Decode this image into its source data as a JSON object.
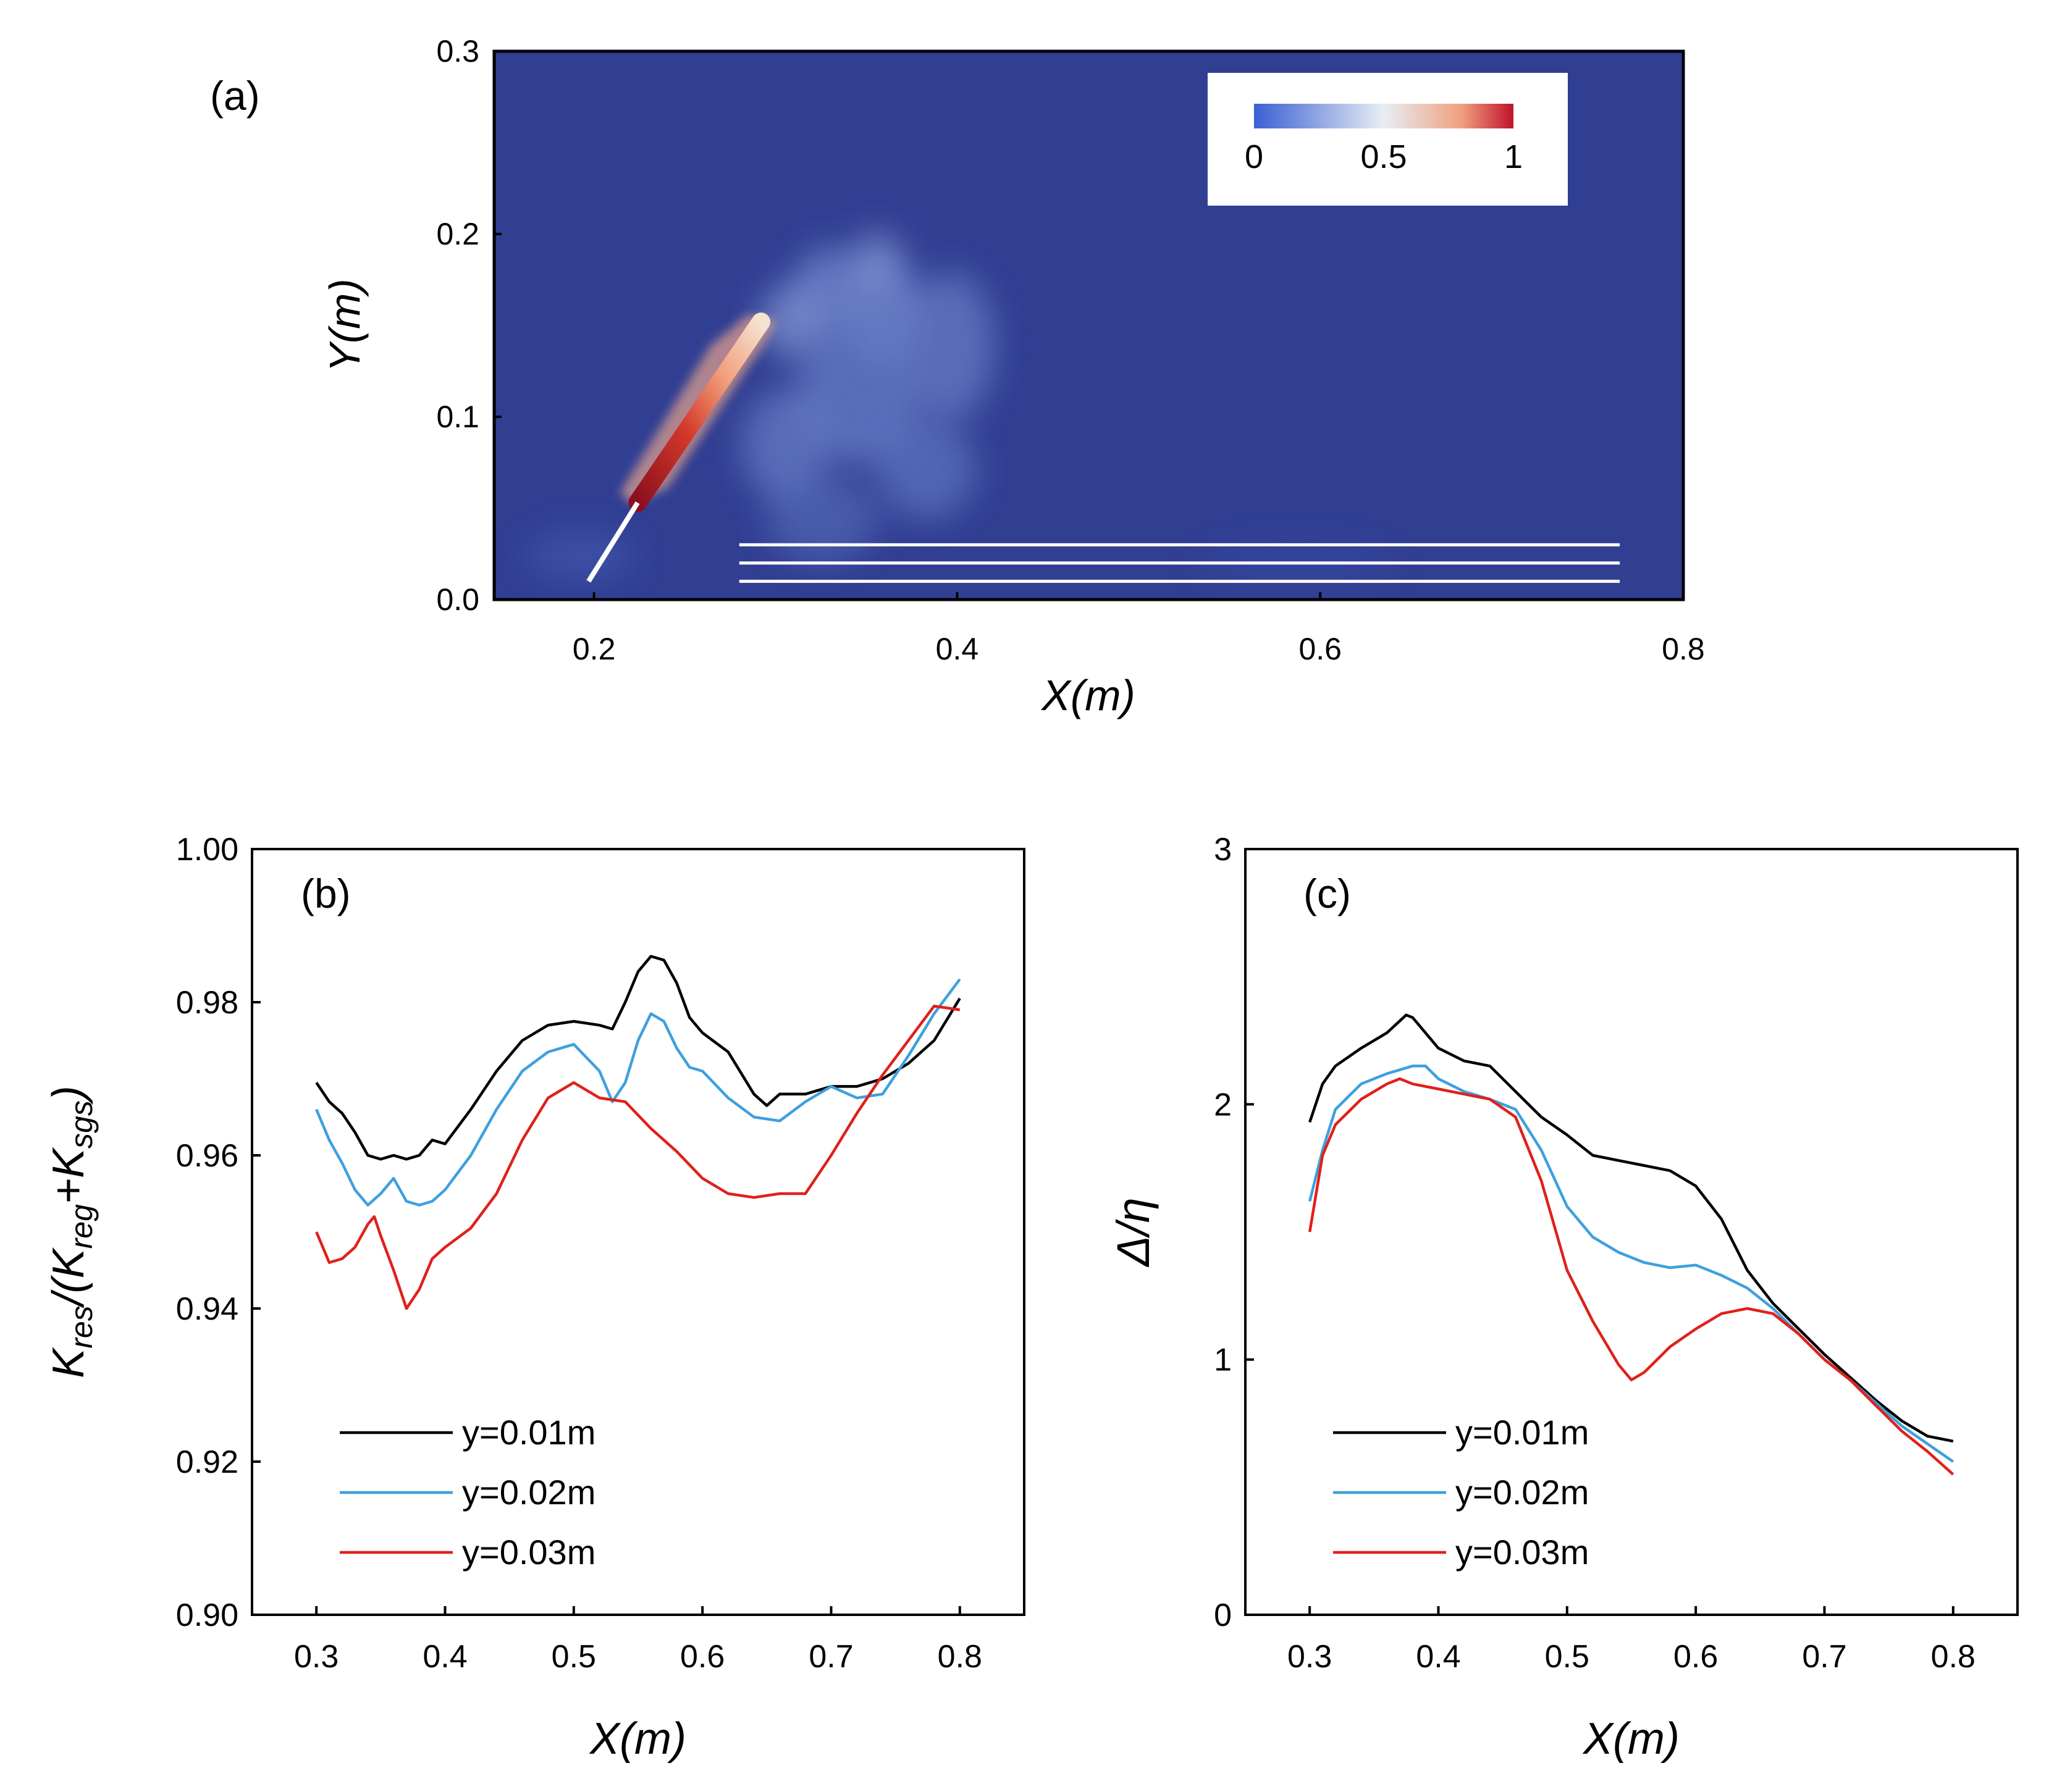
{
  "figure": {
    "panel_a_label": "(a)",
    "panel_b_label": "(b)",
    "panel_c_label": "(c)"
  },
  "chart_data": [
    {
      "id": "a",
      "type": "heatmap",
      "title": "",
      "xlabel": "X(m)",
      "ylabel": "Y(m)",
      "xlim": [
        0.145,
        0.8
      ],
      "ylim": [
        0,
        0.3
      ],
      "xticks": [
        "0.2",
        "0.4",
        "0.6",
        "0.8"
      ],
      "xtick_values": [
        0.2,
        0.4,
        0.6,
        0.8
      ],
      "yticks": [
        "0.0",
        "0.1",
        "0.2",
        "0.3"
      ],
      "ytick_values": [
        0.0,
        0.1,
        0.2,
        0.3
      ],
      "colorbar": {
        "min": 0,
        "max": 1,
        "ticks": [
          "0",
          "0.5",
          "1"
        ],
        "tick_values": [
          0,
          0.5,
          1
        ]
      },
      "colors": {
        "background": "#313f93",
        "low": "#3a5fd3",
        "mid": "#e8eef5",
        "high": "#c0122a"
      },
      "jet": {
        "start": [
          0.197,
          0.01
        ],
        "end": [
          0.292,
          0.152
        ],
        "nozzle_end": [
          0.224,
          0.053
        ]
      },
      "sample_lines_y": [
        0.01,
        0.02,
        0.03
      ],
      "sample_lines_x": [
        0.28,
        0.765
      ]
    },
    {
      "id": "b",
      "type": "line",
      "xlabel": "X(m)",
      "ylabel": "K_res/(K_reg+K_sgs)",
      "ylabel_parts": {
        "k1": "K",
        "s1": "res",
        "mid1": "/(K",
        "s2": "reg",
        "mid2": "+K",
        "s3": "sgs",
        "end": ")"
      },
      "xlim": [
        0.25,
        0.85
      ],
      "ylim": [
        0.9,
        1.0
      ],
      "xticks": [
        "0.3",
        "0.4",
        "0.5",
        "0.6",
        "0.7",
        "0.8"
      ],
      "xtick_values": [
        0.3,
        0.4,
        0.5,
        0.6,
        0.7,
        0.8
      ],
      "yticks": [
        "0.90",
        "0.92",
        "0.94",
        "0.96",
        "0.98",
        "1.00"
      ],
      "ytick_values": [
        0.9,
        0.92,
        0.94,
        0.96,
        0.98,
        1.0
      ],
      "legend_position": "lower-left",
      "series": [
        {
          "name": "y=0.01m",
          "color": "#000000",
          "x": [
            0.3,
            0.31,
            0.32,
            0.33,
            0.34,
            0.35,
            0.36,
            0.37,
            0.38,
            0.39,
            0.4,
            0.42,
            0.44,
            0.46,
            0.48,
            0.5,
            0.52,
            0.53,
            0.54,
            0.55,
            0.56,
            0.57,
            0.58,
            0.59,
            0.6,
            0.62,
            0.64,
            0.65,
            0.66,
            0.68,
            0.7,
            0.72,
            0.74,
            0.76,
            0.78,
            0.8
          ],
          "y": [
            0.9695,
            0.967,
            0.9655,
            0.963,
            0.96,
            0.9595,
            0.96,
            0.9595,
            0.96,
            0.962,
            0.9615,
            0.966,
            0.971,
            0.975,
            0.977,
            0.9775,
            0.977,
            0.9765,
            0.98,
            0.984,
            0.986,
            0.9855,
            0.9825,
            0.978,
            0.976,
            0.9735,
            0.968,
            0.9665,
            0.968,
            0.968,
            0.969,
            0.969,
            0.97,
            0.972,
            0.975,
            0.9805
          ]
        },
        {
          "name": "y=0.02m",
          "color": "#3ea0dd",
          "x": [
            0.3,
            0.31,
            0.32,
            0.33,
            0.34,
            0.35,
            0.36,
            0.37,
            0.38,
            0.39,
            0.4,
            0.42,
            0.44,
            0.46,
            0.48,
            0.5,
            0.52,
            0.53,
            0.54,
            0.55,
            0.56,
            0.57,
            0.58,
            0.59,
            0.6,
            0.62,
            0.64,
            0.66,
            0.68,
            0.7,
            0.72,
            0.74,
            0.76,
            0.78,
            0.8
          ],
          "y": [
            0.966,
            0.962,
            0.959,
            0.9555,
            0.9535,
            0.955,
            0.957,
            0.954,
            0.9535,
            0.954,
            0.9555,
            0.96,
            0.966,
            0.971,
            0.9735,
            0.9745,
            0.971,
            0.967,
            0.9695,
            0.975,
            0.9785,
            0.9775,
            0.974,
            0.9715,
            0.971,
            0.9675,
            0.965,
            0.9645,
            0.967,
            0.969,
            0.9675,
            0.968,
            0.973,
            0.9785,
            0.983
          ]
        },
        {
          "name": "y=0.03m",
          "color": "#e0201b",
          "x": [
            0.3,
            0.31,
            0.32,
            0.33,
            0.34,
            0.345,
            0.35,
            0.36,
            0.37,
            0.38,
            0.39,
            0.4,
            0.42,
            0.44,
            0.46,
            0.48,
            0.5,
            0.52,
            0.54,
            0.56,
            0.58,
            0.6,
            0.62,
            0.64,
            0.66,
            0.68,
            0.7,
            0.72,
            0.74,
            0.76,
            0.78,
            0.8
          ],
          "y": [
            0.95,
            0.946,
            0.9465,
            0.948,
            0.951,
            0.952,
            0.9495,
            0.945,
            0.94,
            0.9425,
            0.9465,
            0.948,
            0.9505,
            0.955,
            0.962,
            0.9675,
            0.9695,
            0.9675,
            0.967,
            0.9635,
            0.9605,
            0.957,
            0.955,
            0.9545,
            0.955,
            0.955,
            0.96,
            0.9655,
            0.9705,
            0.975,
            0.9795,
            0.979
          ]
        }
      ]
    },
    {
      "id": "c",
      "type": "line",
      "xlabel": "X(m)",
      "ylabel": "Δ/η",
      "xlim": [
        0.25,
        0.85
      ],
      "ylim": [
        0,
        3
      ],
      "xticks": [
        "0.3",
        "0.4",
        "0.5",
        "0.6",
        "0.7",
        "0.8"
      ],
      "xtick_values": [
        0.3,
        0.4,
        0.5,
        0.6,
        0.7,
        0.8
      ],
      "yticks": [
        "0",
        "1",
        "2",
        "3"
      ],
      "ytick_values": [
        0,
        1,
        2,
        3
      ],
      "legend_position": "lower-left",
      "series": [
        {
          "name": "y=0.01m",
          "color": "#000000",
          "x": [
            0.3,
            0.31,
            0.32,
            0.34,
            0.36,
            0.375,
            0.38,
            0.4,
            0.42,
            0.44,
            0.46,
            0.48,
            0.5,
            0.52,
            0.54,
            0.56,
            0.58,
            0.6,
            0.62,
            0.64,
            0.66,
            0.68,
            0.7,
            0.72,
            0.74,
            0.76,
            0.78,
            0.8
          ],
          "y": [
            1.93,
            2.08,
            2.15,
            2.22,
            2.28,
            2.35,
            2.34,
            2.22,
            2.17,
            2.15,
            2.05,
            1.95,
            1.88,
            1.8,
            1.78,
            1.76,
            1.74,
            1.68,
            1.55,
            1.35,
            1.22,
            1.12,
            1.02,
            0.93,
            0.84,
            0.76,
            0.7,
            0.68
          ]
        },
        {
          "name": "y=0.02m",
          "color": "#3ea0dd",
          "x": [
            0.3,
            0.31,
            0.32,
            0.34,
            0.36,
            0.38,
            0.39,
            0.4,
            0.42,
            0.44,
            0.46,
            0.48,
            0.5,
            0.52,
            0.54,
            0.56,
            0.58,
            0.6,
            0.62,
            0.64,
            0.66,
            0.68,
            0.7,
            0.72,
            0.74,
            0.76,
            0.78,
            0.8
          ],
          "y": [
            1.62,
            1.82,
            1.98,
            2.08,
            2.12,
            2.15,
            2.15,
            2.1,
            2.05,
            2.02,
            1.98,
            1.82,
            1.6,
            1.48,
            1.42,
            1.38,
            1.36,
            1.37,
            1.33,
            1.28,
            1.2,
            1.1,
            1.0,
            0.92,
            0.83,
            0.74,
            0.67,
            0.6
          ]
        },
        {
          "name": "y=0.03m",
          "color": "#e0201b",
          "x": [
            0.3,
            0.31,
            0.32,
            0.34,
            0.36,
            0.37,
            0.38,
            0.4,
            0.42,
            0.44,
            0.46,
            0.48,
            0.5,
            0.52,
            0.54,
            0.55,
            0.56,
            0.58,
            0.6,
            0.62,
            0.64,
            0.66,
            0.68,
            0.7,
            0.72,
            0.74,
            0.76,
            0.78,
            0.8
          ],
          "y": [
            1.5,
            1.8,
            1.92,
            2.02,
            2.08,
            2.1,
            2.08,
            2.06,
            2.04,
            2.02,
            1.95,
            1.7,
            1.35,
            1.15,
            0.98,
            0.92,
            0.95,
            1.05,
            1.12,
            1.18,
            1.2,
            1.18,
            1.1,
            1.0,
            0.92,
            0.82,
            0.72,
            0.64,
            0.55
          ]
        }
      ]
    }
  ]
}
